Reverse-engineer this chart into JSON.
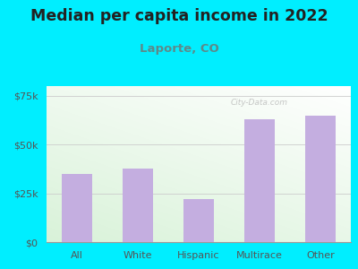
{
  "title": "Median per capita income in 2022",
  "subtitle": "Laporte, CO",
  "categories": [
    "All",
    "White",
    "Hispanic",
    "Multirace",
    "Other"
  ],
  "values": [
    35000,
    37500,
    22000,
    63000,
    65000
  ],
  "bar_color": "#c4aee0",
  "background_color": "#00EEFF",
  "title_color": "#222222",
  "subtitle_color": "#5c8a8a",
  "tick_color": "#555555",
  "ylim": [
    0,
    80000
  ],
  "yticks": [
    0,
    25000,
    50000,
    75000
  ],
  "ytick_labels": [
    "$0",
    "$25k",
    "$50k",
    "$75k"
  ],
  "watermark": "City-Data.com",
  "title_fontsize": 12.5,
  "subtitle_fontsize": 9.5,
  "tick_fontsize": 8
}
